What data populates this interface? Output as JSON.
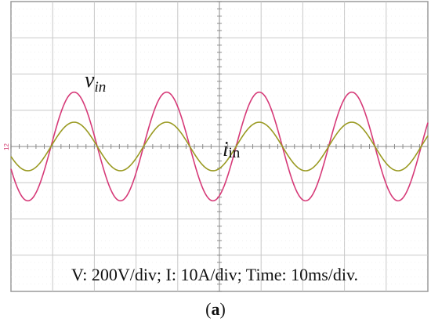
{
  "chart_data": {
    "type": "line",
    "divisions": {
      "x": 10,
      "y": 8
    },
    "x_unit": "div",
    "y_unit": "div",
    "xlim": [
      0,
      10
    ],
    "ylim": [
      -4,
      4
    ],
    "grid": true,
    "series": [
      {
        "name": "vin",
        "label_main": "v",
        "label_sub": "in",
        "color": "#d63a78",
        "waveform": "sine",
        "amplitude_div": 1.5,
        "period_div": 2.22,
        "zero_crossing_rising_div": 0.96
      },
      {
        "name": "iin",
        "label_main": "i",
        "label_sub": "in",
        "color": "#9a9a22",
        "waveform": "sine",
        "amplitude_div": 0.67,
        "period_div": 2.22,
        "zero_crossing_rising_div": 0.96
      }
    ],
    "scale_text": "V: 200V/div; I: 10A/div; Time: 10ms/div.",
    "channel_marker": "12"
  },
  "caption": {
    "open": "(",
    "letter": "a",
    "close": ")"
  }
}
